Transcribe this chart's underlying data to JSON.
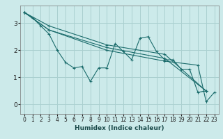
{
  "xlabel": "Humidex (Indice chaleur)",
  "xlim": [
    -0.5,
    23.5
  ],
  "ylim": [
    -0.35,
    3.65
  ],
  "yticks": [
    0,
    1,
    2,
    3
  ],
  "xticks": [
    0,
    1,
    2,
    3,
    4,
    5,
    6,
    7,
    8,
    9,
    10,
    11,
    12,
    13,
    14,
    15,
    16,
    17,
    18,
    19,
    20,
    21,
    22,
    23
  ],
  "bg_color": "#cceaea",
  "grid_color": "#aad0d0",
  "line_color": "#1a6b6b",
  "lines": [
    {
      "x": [
        0,
        1,
        2,
        3,
        4,
        5,
        6,
        7,
        8,
        9,
        10,
        11,
        12,
        13,
        14,
        15,
        16,
        17,
        18,
        19,
        20,
        21,
        22
      ],
      "y": [
        3.4,
        3.2,
        2.9,
        2.6,
        2.0,
        1.55,
        1.35,
        1.4,
        0.85,
        1.35,
        1.35,
        2.25,
        1.95,
        1.65,
        2.45,
        2.5,
        1.95,
        1.65,
        1.65,
        1.3,
        1.3,
        0.45,
        0.5
      ]
    },
    {
      "x": [
        0,
        3,
        10,
        17,
        22
      ],
      "y": [
        3.4,
        2.9,
        2.2,
        1.85,
        0.5
      ]
    },
    {
      "x": [
        0,
        3,
        10,
        17,
        22
      ],
      "y": [
        3.4,
        2.75,
        2.1,
        1.7,
        0.5
      ]
    },
    {
      "x": [
        0,
        3,
        10,
        17,
        21,
        22,
        23
      ],
      "y": [
        3.4,
        2.75,
        2.0,
        1.6,
        1.45,
        0.1,
        0.45
      ]
    }
  ]
}
